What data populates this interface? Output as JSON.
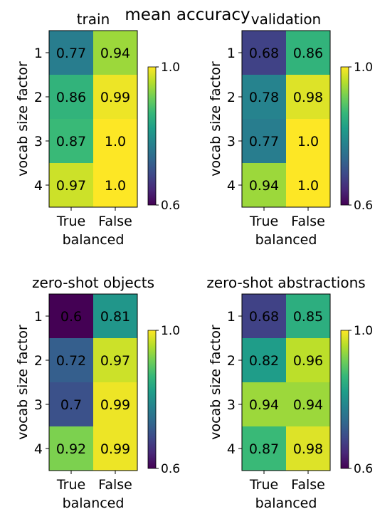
{
  "figure_title": "mean accuracy",
  "colorscale": {
    "min": 0.6,
    "max": 1.0,
    "min_label": "0.6",
    "max_label": "1.0",
    "stops": [
      "#440154",
      "#482878",
      "#3e4989",
      "#31688e",
      "#26828e",
      "#1f9e89",
      "#35b779",
      "#6ece58",
      "#b5de2b",
      "#fde725"
    ]
  },
  "chart_data": [
    {
      "type": "heatmap",
      "title": "train",
      "xlabel": "balanced",
      "ylabel": "vocab size factor",
      "x_categories": [
        "True",
        "False"
      ],
      "y_categories": [
        "1",
        "2",
        "3",
        "4"
      ],
      "values": [
        [
          0.77,
          0.94
        ],
        [
          0.86,
          0.99
        ],
        [
          0.87,
          1.0
        ],
        [
          0.97,
          1.0
        ]
      ],
      "cell_labels": [
        [
          "0.77",
          "0.94"
        ],
        [
          "0.86",
          "0.99"
        ],
        [
          "0.87",
          "1.0"
        ],
        [
          "0.97",
          "1.0"
        ]
      ],
      "colorbar_ticks": [
        "1.0",
        "0.6"
      ]
    },
    {
      "type": "heatmap",
      "title": "validation",
      "xlabel": "balanced",
      "ylabel": "vocab size factor",
      "x_categories": [
        "True",
        "False"
      ],
      "y_categories": [
        "1",
        "2",
        "3",
        "4"
      ],
      "values": [
        [
          0.68,
          0.86
        ],
        [
          0.78,
          0.98
        ],
        [
          0.77,
          1.0
        ],
        [
          0.94,
          1.0
        ]
      ],
      "cell_labels": [
        [
          "0.68",
          "0.86"
        ],
        [
          "0.78",
          "0.98"
        ],
        [
          "0.77",
          "1.0"
        ],
        [
          "0.94",
          "1.0"
        ]
      ],
      "colorbar_ticks": [
        "1.0",
        "0.6"
      ]
    },
    {
      "type": "heatmap",
      "title": "zero-shot objects",
      "xlabel": "balanced",
      "ylabel": "vocab size factor",
      "x_categories": [
        "True",
        "False"
      ],
      "y_categories": [
        "1",
        "2",
        "3",
        "4"
      ],
      "values": [
        [
          0.6,
          0.81
        ],
        [
          0.72,
          0.97
        ],
        [
          0.7,
          0.99
        ],
        [
          0.92,
          0.99
        ]
      ],
      "cell_labels": [
        [
          "0.6",
          "0.81"
        ],
        [
          "0.72",
          "0.97"
        ],
        [
          "0.7",
          "0.99"
        ],
        [
          "0.92",
          "0.99"
        ]
      ],
      "colorbar_ticks": [
        "1.0",
        "0.6"
      ]
    },
    {
      "type": "heatmap",
      "title": "zero-shot abstractions",
      "xlabel": "balanced",
      "ylabel": "vocab size factor",
      "x_categories": [
        "True",
        "False"
      ],
      "y_categories": [
        "1",
        "2",
        "3",
        "4"
      ],
      "values": [
        [
          0.68,
          0.85
        ],
        [
          0.82,
          0.96
        ],
        [
          0.94,
          0.94
        ],
        [
          0.87,
          0.98
        ]
      ],
      "cell_labels": [
        [
          "0.68",
          "0.85"
        ],
        [
          "0.82",
          "0.96"
        ],
        [
          "0.94",
          "0.94"
        ],
        [
          "0.87",
          "0.98"
        ]
      ],
      "colorbar_ticks": [
        "1.0",
        "0.6"
      ]
    }
  ]
}
